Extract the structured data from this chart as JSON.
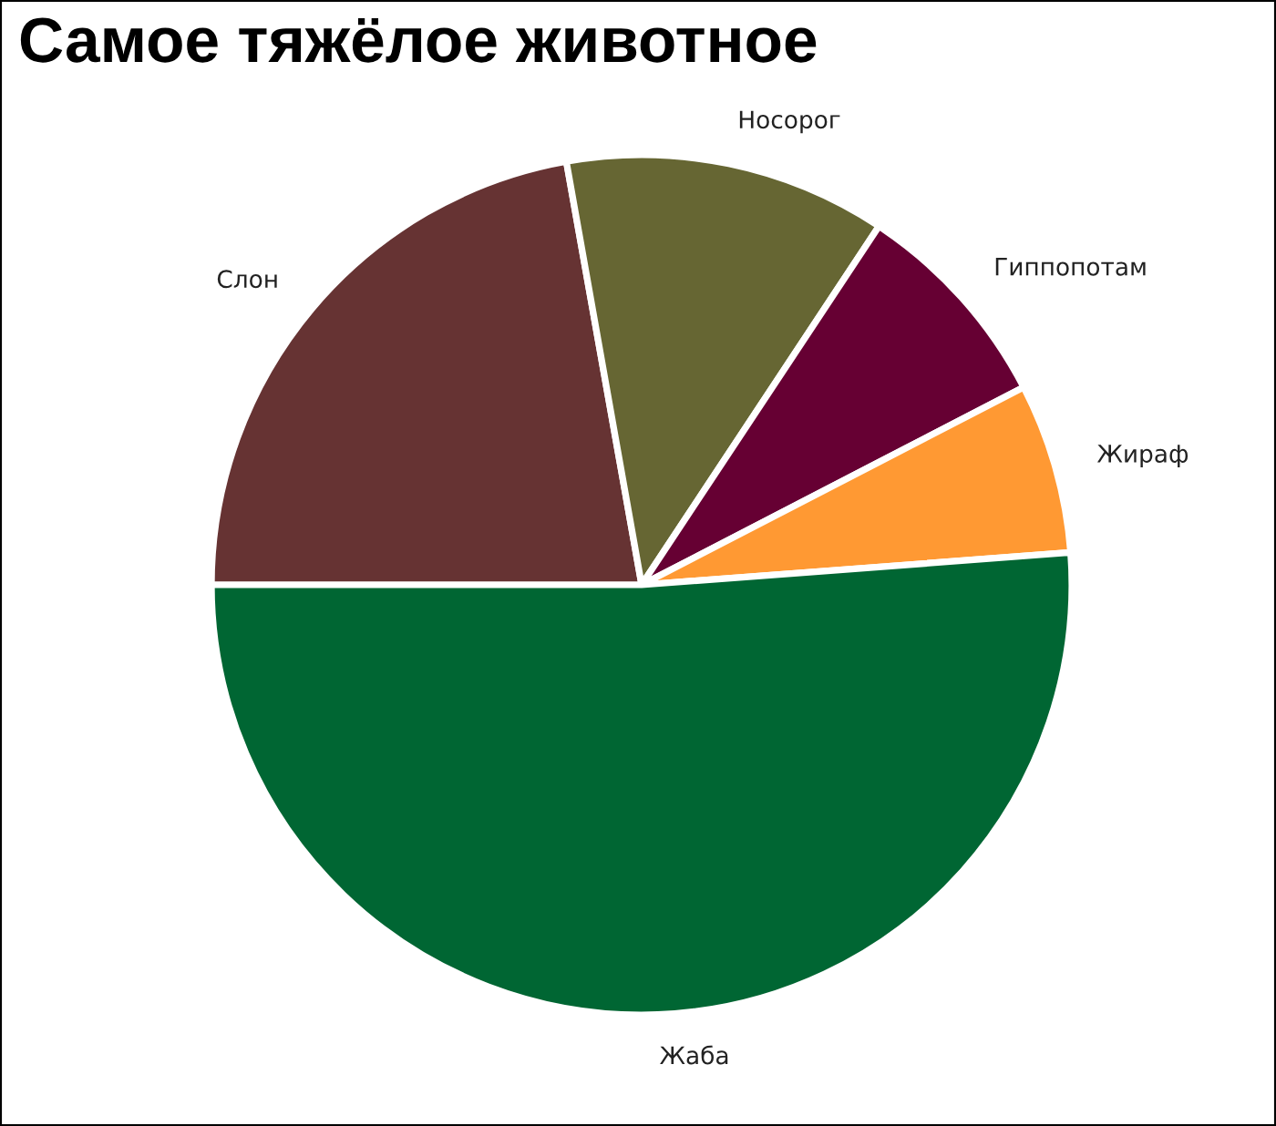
{
  "chart_data": {
    "type": "pie",
    "title": "Самое тяжёлое животное",
    "categories": [
      "Слон",
      "Носорог",
      "Гиппопотам",
      "Жираф",
      "Жаба"
    ],
    "values": [
      22.2,
      12.1,
      8.1,
      6.4,
      51.2
    ],
    "colors": [
      "#663333",
      "#666633",
      "#660033",
      "#ff9933",
      "#006633"
    ]
  }
}
